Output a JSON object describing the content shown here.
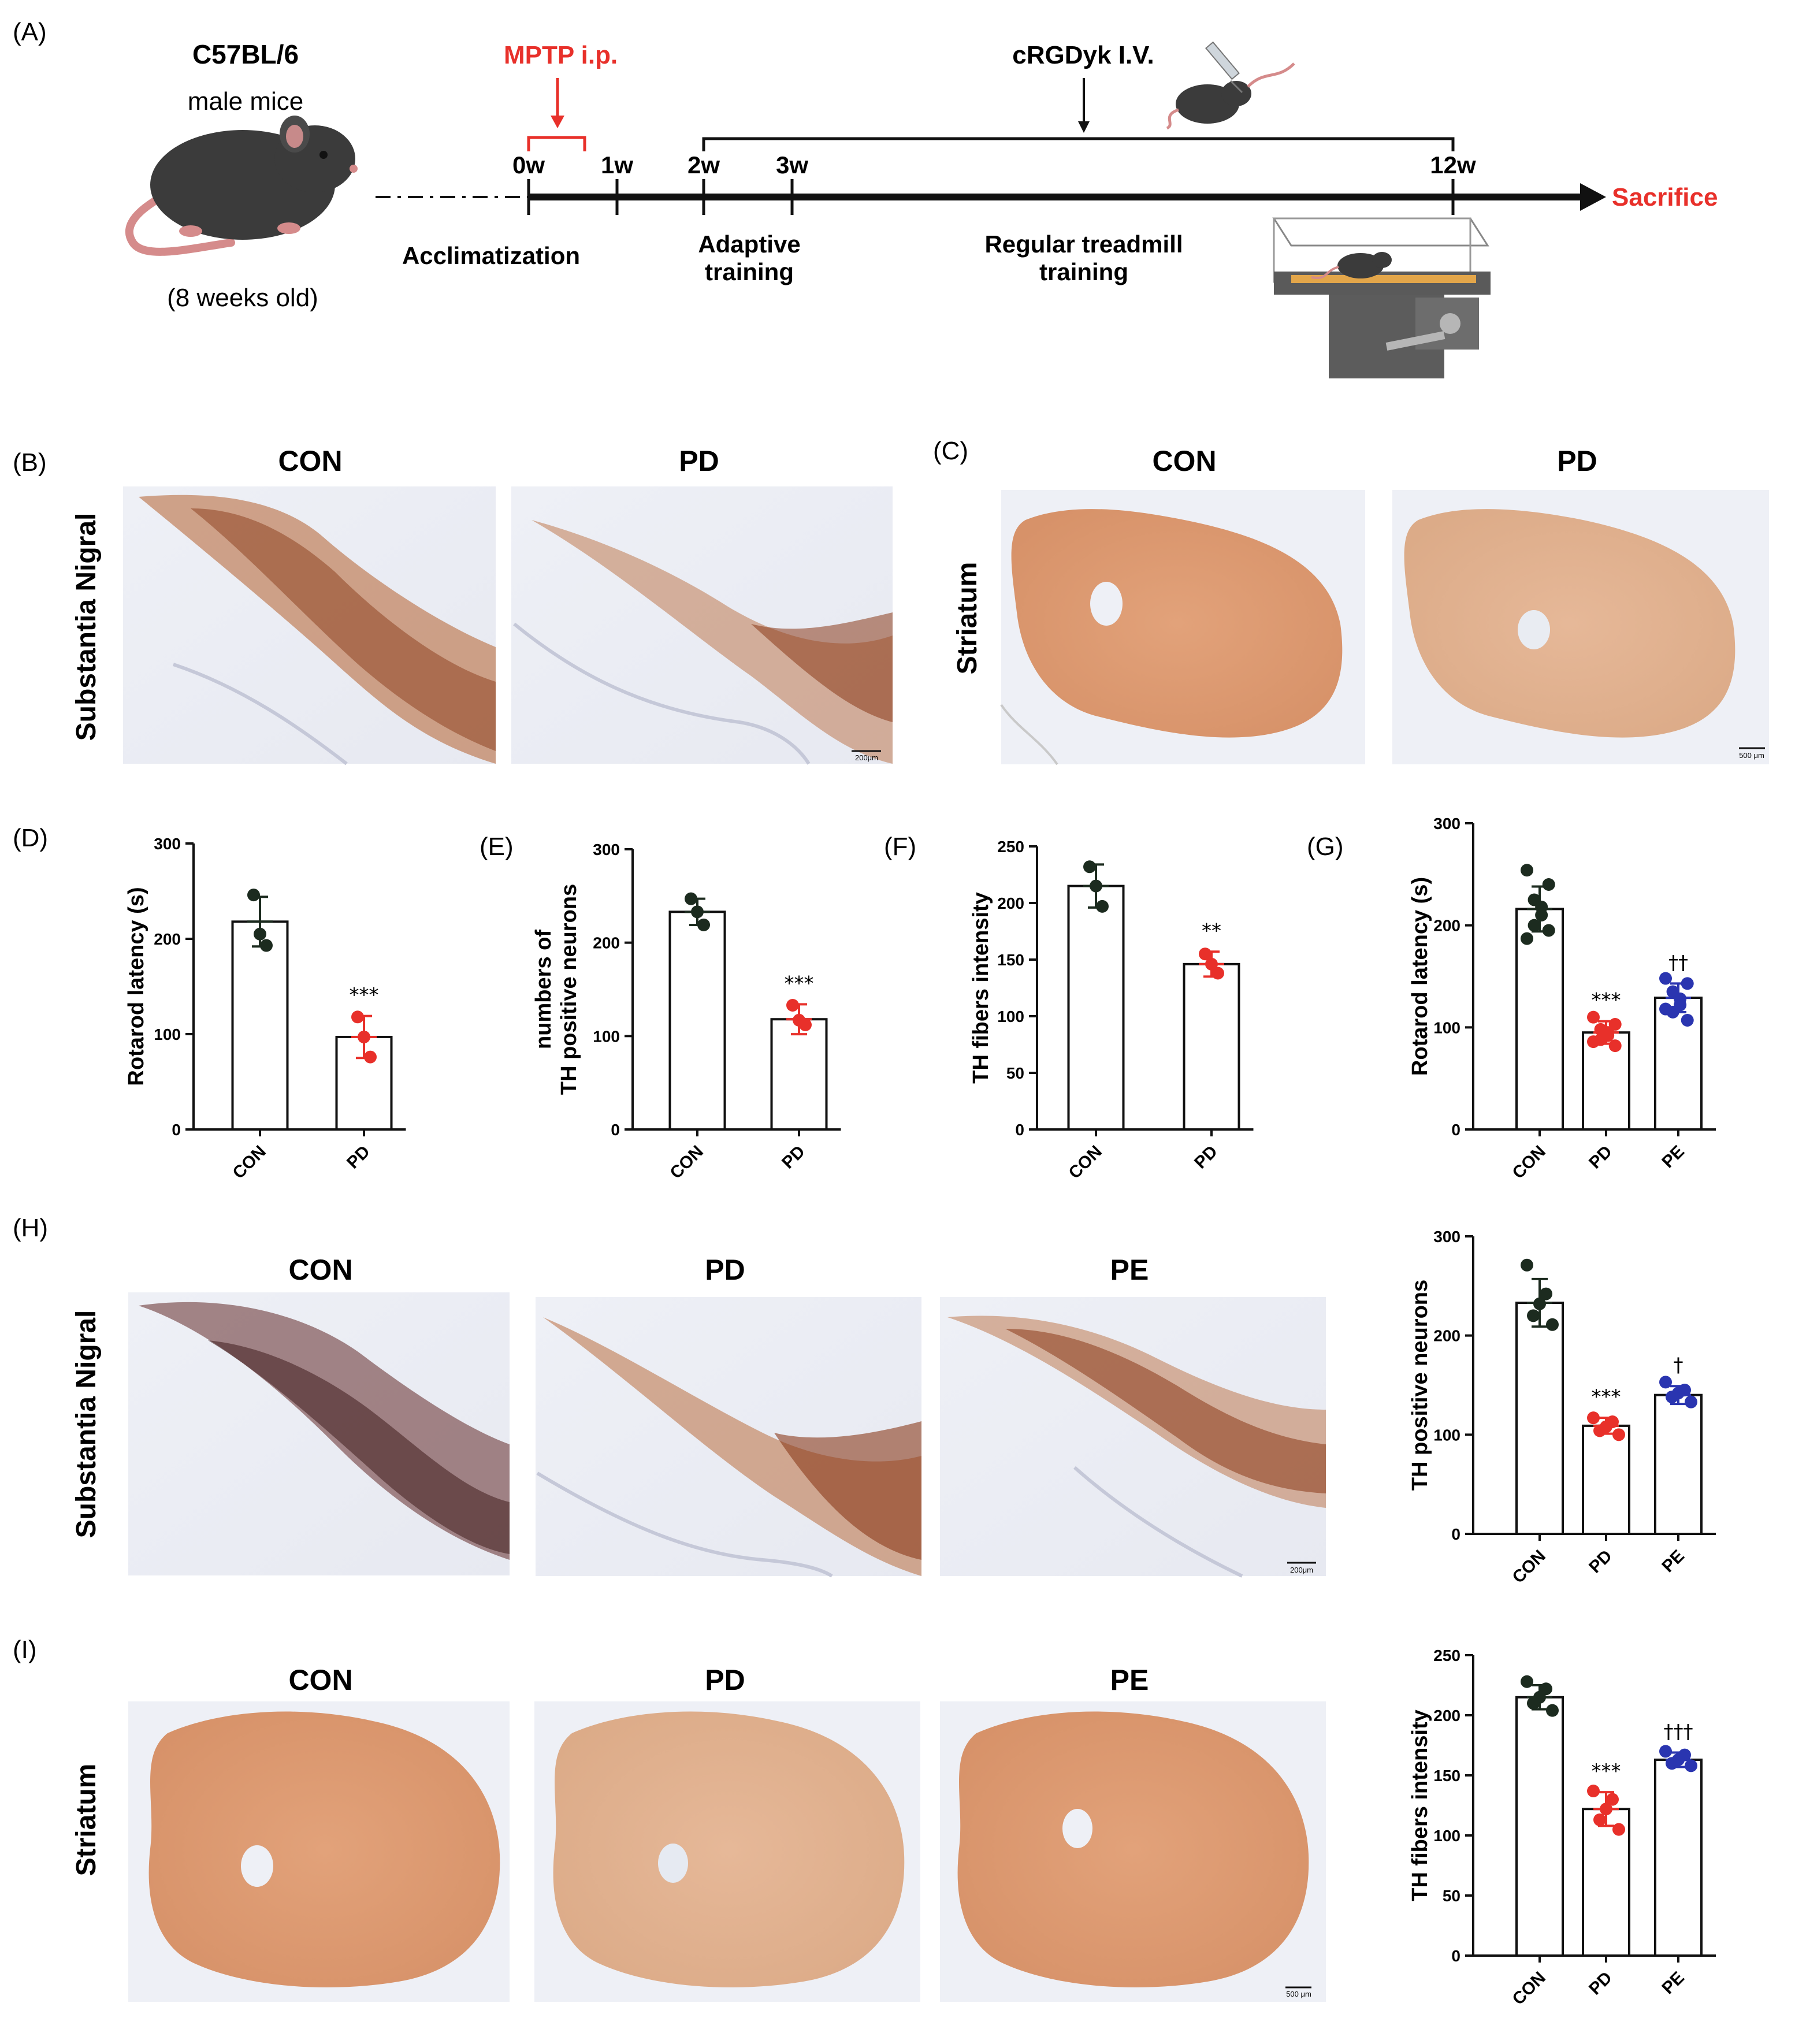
{
  "panel_A": {
    "label": "(A)",
    "strain": "C57BL/6",
    "sex": "male  mice",
    "age": "(8 weeks old)",
    "mptp": "MPTP  i.p.",
    "crgdyk": "cRGDyk I.V.",
    "ticks": [
      "0w",
      "1w",
      "2w",
      "3w",
      "12w"
    ],
    "sacrifice": "Sacrifice",
    "acclimatization": "Acclimatization",
    "adaptive_1": "Adaptive",
    "adaptive_2": "training",
    "regular_1": "Regular treadmill",
    "regular_2": "training"
  },
  "labels": {
    "B": "(B)",
    "C": "(C)",
    "D": "(D)",
    "E": "(E)",
    "F": "(F)",
    "G": "(G)",
    "H": "(H)",
    "I": "(I)",
    "CON": "CON",
    "PD": "PD",
    "PE": "PE",
    "substantia_nigral": "Substantia Nigral",
    "striatum": "Striatum",
    "scale_200": "200μm",
    "scale_500": "500 μm"
  },
  "colors": {
    "CON": "#1c2b1f",
    "PD": "#e8302a",
    "PE": "#2a35b0"
  },
  "chart_data": [
    {
      "id": "D",
      "type": "bar",
      "categories": [
        "CON",
        "PD"
      ],
      "values": [
        218,
        97
      ],
      "sd": [
        26,
        22
      ],
      "points": [
        [
          246,
          205,
          193
        ],
        [
          118,
          97,
          76
        ]
      ],
      "ylabel": "Rotarod latency (s)",
      "ylim": [
        0,
        300
      ],
      "yticks": [
        0,
        100,
        200,
        300
      ],
      "sig": [
        "",
        "***"
      ]
    },
    {
      "id": "E",
      "type": "bar",
      "categories": [
        "CON",
        "PD"
      ],
      "values": [
        233,
        118
      ],
      "sd": [
        14,
        16
      ],
      "points": [
        [
          247,
          233,
          219
        ],
        [
          133,
          117,
          112
        ]
      ],
      "ylabel": [
        "numbers of",
        "TH positive neurons"
      ],
      "ylim": [
        0,
        300
      ],
      "yticks": [
        0,
        100,
        200,
        300
      ],
      "sig": [
        "",
        "***"
      ]
    },
    {
      "id": "F",
      "type": "bar",
      "categories": [
        "CON",
        "PD"
      ],
      "values": [
        215,
        146
      ],
      "sd": [
        19,
        11
      ],
      "points": [
        [
          232,
          215,
          197
        ],
        [
          155,
          146,
          138
        ]
      ],
      "ylabel": "TH fibers intensity",
      "ylim": [
        0,
        250
      ],
      "yticks": [
        0,
        50,
        100,
        150,
        200,
        250
      ],
      "sig": [
        "",
        "**"
      ]
    },
    {
      "id": "G",
      "type": "bar",
      "categories": [
        "CON",
        "PD",
        "PE"
      ],
      "values": [
        216,
        95,
        129
      ],
      "sd": [
        22,
        11,
        14
      ],
      "points": [
        [
          254,
          240,
          225,
          218,
          210,
          200,
          195,
          187
        ],
        [
          110,
          103,
          98,
          95,
          92,
          88,
          82,
          86
        ],
        [
          148,
          143,
          135,
          128,
          122,
          115,
          107,
          118
        ]
      ],
      "ylabel": "Rotarod latency (s)",
      "ylim": [
        0,
        300
      ],
      "yticks": [
        0,
        100,
        200,
        300
      ],
      "sig": [
        "",
        "***",
        "††"
      ]
    },
    {
      "id": "H",
      "type": "bar",
      "categories": [
        "CON",
        "PD",
        "PE"
      ],
      "values": [
        233,
        109,
        140
      ],
      "sd": [
        24,
        8,
        9
      ],
      "points": [
        [
          271,
          242,
          232,
          220,
          211
        ],
        [
          117,
          113,
          108,
          104,
          100
        ],
        [
          153,
          145,
          142,
          138,
          133
        ]
      ],
      "ylabel": "TH positive neurons",
      "ylim": [
        0,
        300
      ],
      "yticks": [
        0,
        100,
        200,
        300
      ],
      "sig": [
        "",
        "***",
        "†"
      ]
    },
    {
      "id": "I",
      "type": "bar",
      "categories": [
        "CON",
        "PD",
        "PE"
      ],
      "values": [
        215,
        122,
        163
      ],
      "sd": [
        10,
        14,
        6
      ],
      "points": [
        [
          228,
          222,
          215,
          210,
          204
        ],
        [
          137,
          130,
          122,
          113,
          105
        ],
        [
          170,
          167,
          163,
          160,
          158
        ]
      ],
      "ylabel": "TH fibers intensity",
      "ylim": [
        0,
        250
      ],
      "yticks": [
        0,
        50,
        100,
        150,
        200,
        250
      ],
      "sig": [
        "",
        "***",
        "†††"
      ]
    }
  ]
}
